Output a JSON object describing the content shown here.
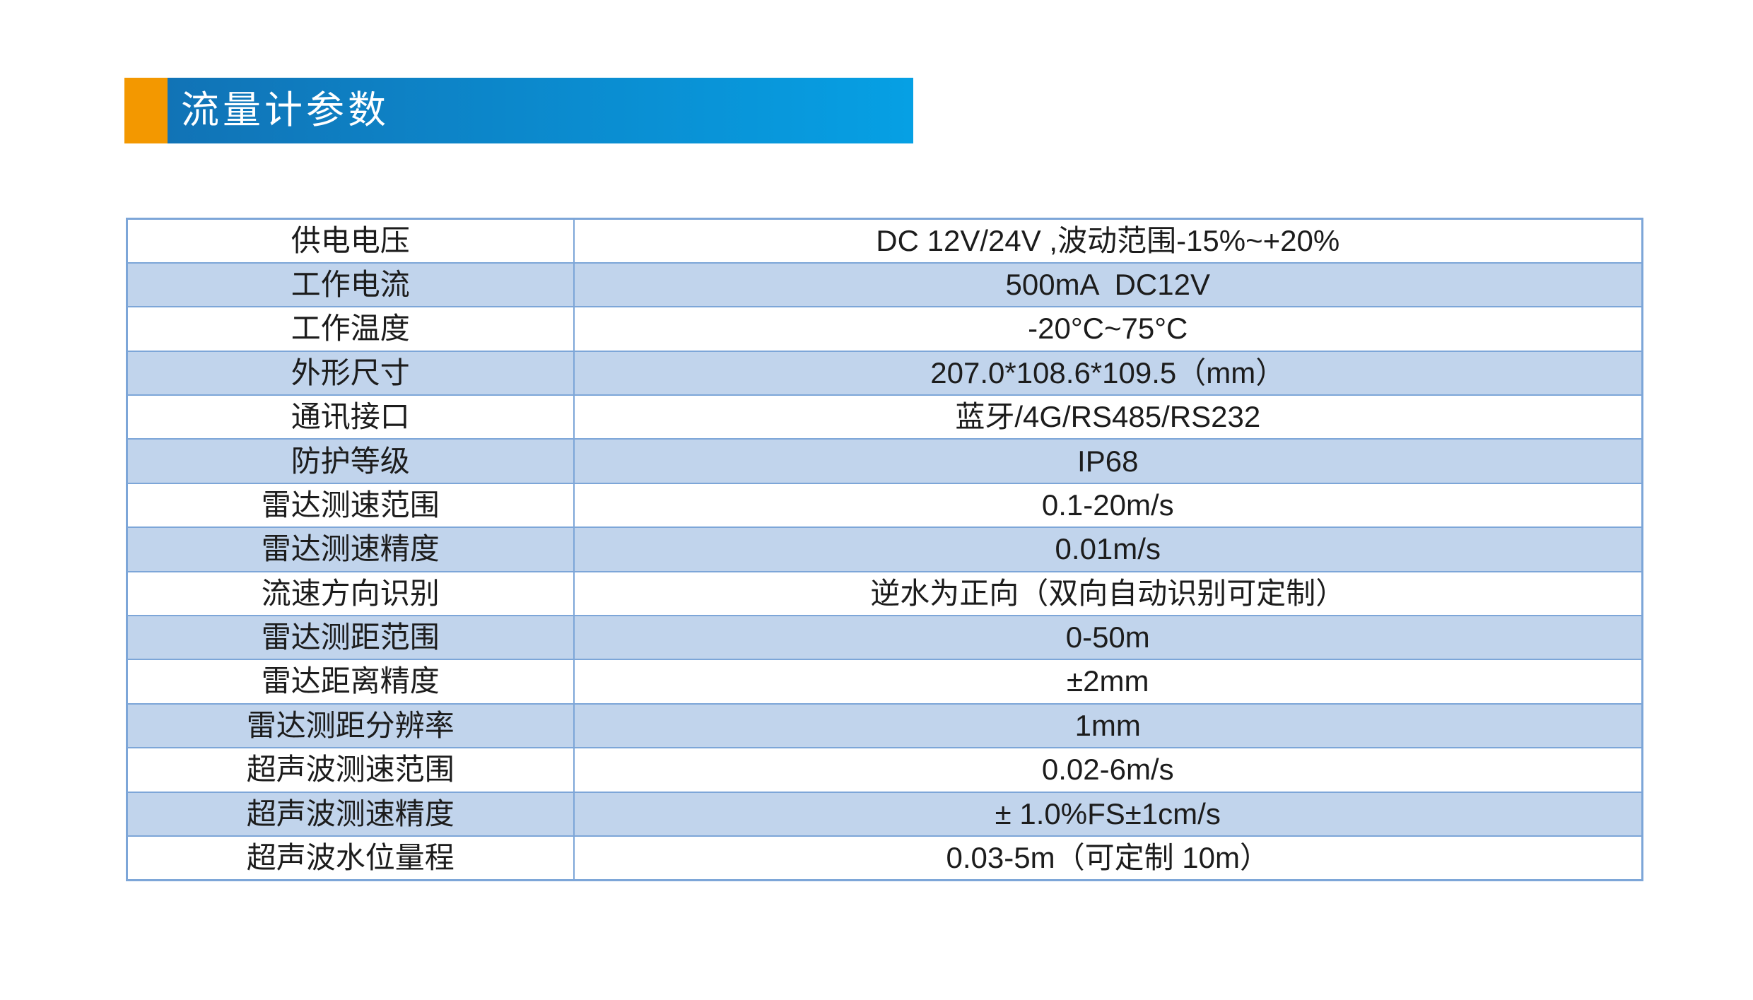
{
  "header": {
    "title": "流量计参数",
    "accent_color": "#f39800",
    "bar_gradient_start": "#1173b6",
    "bar_gradient_end": "#06a0e4",
    "title_color": "#ffffff"
  },
  "table": {
    "stripe_color": "#c1d4ec",
    "border_color": "#7da6d8",
    "text_color": "#1c1c1c",
    "rows": [
      {
        "name": "供电电压",
        "value": "DC 12V/24V ,波动范围-15%~+20%"
      },
      {
        "name": "工作电流",
        "value": "500mA  DC12V"
      },
      {
        "name": "工作温度",
        "value": "-20°C~75°C"
      },
      {
        "name": "外形尺寸",
        "value": "207.0*108.6*109.5（mm）"
      },
      {
        "name": "通讯接口",
        "value": "蓝牙/4G/RS485/RS232"
      },
      {
        "name": "防护等级",
        "value": "IP68"
      },
      {
        "name": "雷达测速范围",
        "value": "0.1-20m/s"
      },
      {
        "name": "雷达测速精度",
        "value": "0.01m/s"
      },
      {
        "name": "流速方向识别",
        "value": "逆水为正向（双向自动识别可定制）"
      },
      {
        "name": "雷达测距范围",
        "value": "0-50m"
      },
      {
        "name": "雷达距离精度",
        "value": "±2mm"
      },
      {
        "name": "雷达测距分辨率",
        "value": "1mm"
      },
      {
        "name": "超声波测速范围",
        "value": "0.02-6m/s"
      },
      {
        "name": "超声波测速精度",
        "value": "± 1.0%FS±1cm/s"
      },
      {
        "name": "超声波水位量程",
        "value": "0.03-5m（可定制 10m）"
      }
    ]
  }
}
